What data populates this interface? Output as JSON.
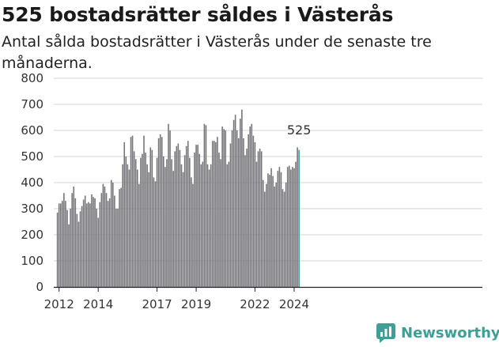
{
  "chart_data": {
    "type": "bar",
    "title": "525 bostadsrätter såldes i Västerås",
    "subtitle": "Antal sålda bostadsrätter i Västerås under de senaste tre månaderna.",
    "xlabel": "",
    "ylabel": "",
    "ylim": [
      0,
      800
    ],
    "yticks": [
      "0",
      "100",
      "200",
      "300",
      "400",
      "500",
      "600",
      "700",
      "800"
    ],
    "xticks": [
      "2012",
      "2014",
      "2017",
      "2019",
      "2022",
      "2024"
    ],
    "grid": true,
    "legend": "none",
    "colors": {
      "bar": "#76767a",
      "highlight": "#3e9f96",
      "grid": "#d6d6d6",
      "axis": "#222222"
    },
    "annotation": {
      "label": "525",
      "value": 525
    },
    "start": "2011-12",
    "values": [
      285,
      320,
      320,
      330,
      360,
      330,
      295,
      240,
      300,
      360,
      385,
      340,
      280,
      250,
      290,
      310,
      335,
      350,
      320,
      325,
      320,
      355,
      345,
      340,
      300,
      265,
      325,
      360,
      395,
      385,
      360,
      330,
      340,
      410,
      400,
      350,
      300,
      300,
      375,
      380,
      470,
      555,
      500,
      470,
      450,
      575,
      580,
      520,
      490,
      450,
      395,
      495,
      510,
      580,
      515,
      470,
      440,
      535,
      525,
      420,
      405,
      495,
      570,
      585,
      575,
      500,
      460,
      490,
      625,
      600,
      490,
      445,
      520,
      540,
      550,
      525,
      470,
      440,
      505,
      540,
      560,
      495,
      420,
      395,
      515,
      545,
      545,
      510,
      470,
      480,
      625,
      620,
      470,
      450,
      470,
      560,
      560,
      555,
      575,
      515,
      490,
      615,
      605,
      600,
      470,
      480,
      550,
      600,
      640,
      660,
      600,
      570,
      645,
      680,
      570,
      505,
      530,
      585,
      615,
      625,
      580,
      555,
      480,
      520,
      530,
      520,
      410,
      365,
      395,
      435,
      430,
      455,
      425,
      385,
      400,
      445,
      460,
      440,
      375,
      365,
      400,
      460,
      465,
      450,
      460,
      455,
      480,
      535,
      525
    ]
  },
  "brand": {
    "name": "Newsworthy",
    "icon": "newsworthy-logo-icon"
  }
}
